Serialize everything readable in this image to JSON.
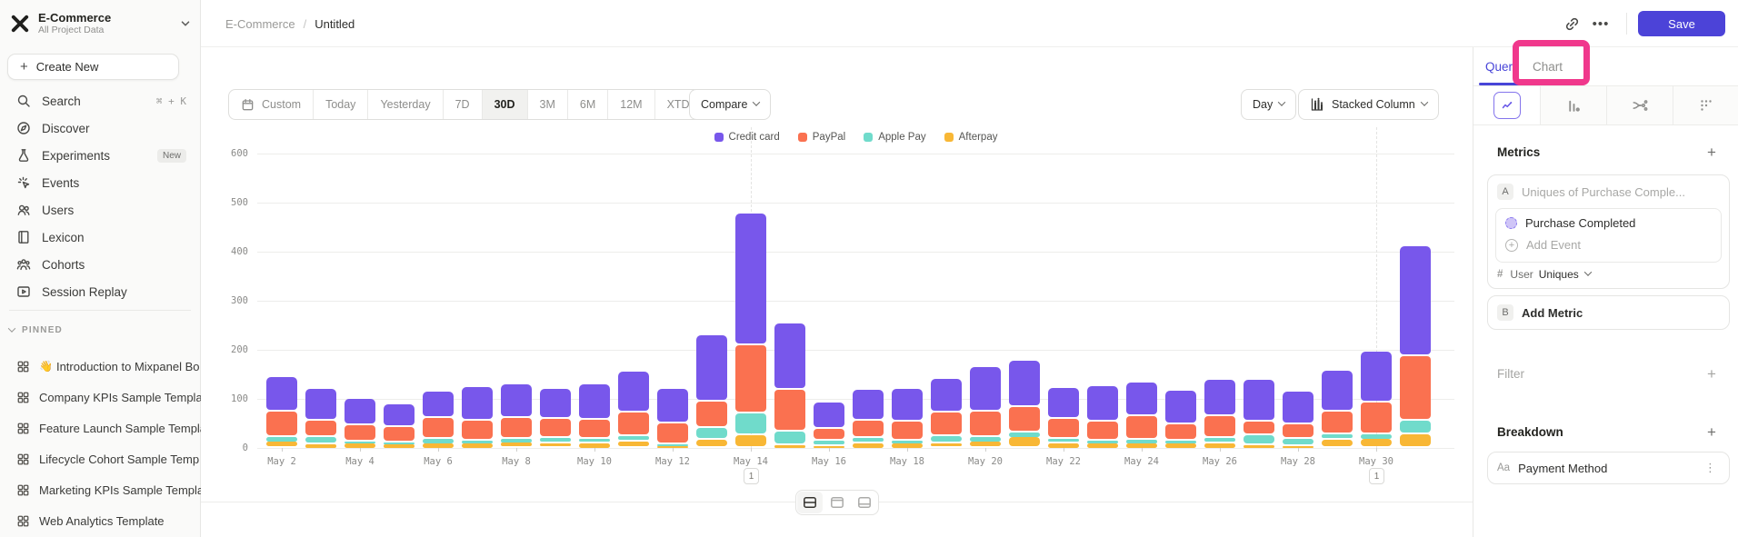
{
  "colors": {
    "accent": "#4c43d8",
    "highlight_box": "#f0388c",
    "active_tab": "#4845d8"
  },
  "sidebar": {
    "project_name": "E-Commerce",
    "project_subtitle": "All Project Data",
    "create_new_label": "Create New",
    "nav": [
      {
        "label": "Search",
        "icon": "search-icon",
        "shortcut": "⌘ + K"
      },
      {
        "label": "Discover",
        "icon": "compass-icon"
      },
      {
        "label": "Experiments",
        "icon": "flask-icon",
        "badge": "New"
      },
      {
        "label": "Events",
        "icon": "events-icon"
      },
      {
        "label": "Users",
        "icon": "users-icon"
      },
      {
        "label": "Lexicon",
        "icon": "book-icon"
      },
      {
        "label": "Cohorts",
        "icon": "cohorts-icon"
      },
      {
        "label": "Session Replay",
        "icon": "replay-icon"
      }
    ],
    "pinned_label": "PINNED",
    "pinned": [
      {
        "emoji": "👋",
        "label": "Introduction to Mixpanel Bo"
      },
      {
        "label": "Company KPIs Sample Templat"
      },
      {
        "label": "Feature Launch Sample Templa"
      },
      {
        "label": "Lifecycle Cohort Sample Temp"
      },
      {
        "label": "Marketing KPIs Sample Templat"
      },
      {
        "label": "Web Analytics Template"
      }
    ]
  },
  "header": {
    "breadcrumb_root": "E-Commerce",
    "breadcrumb_current": "Untitled",
    "save_label": "Save"
  },
  "toolbar": {
    "date_ranges": [
      {
        "label": "Custom",
        "icon": "calendar-icon"
      },
      {
        "label": "Today"
      },
      {
        "label": "Yesterday"
      },
      {
        "label": "7D"
      },
      {
        "label": "30D",
        "active": true
      },
      {
        "label": "3M"
      },
      {
        "label": "6M"
      },
      {
        "label": "12M"
      },
      {
        "label": "XTD",
        "chevron": true
      }
    ],
    "compare_label": "Compare",
    "granularity_label": "Day",
    "chart_type_label": "Stacked Column"
  },
  "right_panel": {
    "tabs": [
      {
        "label": "Query",
        "active": true
      },
      {
        "label": "Chart",
        "active": false
      }
    ],
    "metrics_label": "Metrics",
    "metric_a": {
      "badge": "A",
      "placeholder": "Uniques of Purchase Comple...",
      "event_name": "Purchase Completed",
      "add_event_label": "Add Event",
      "measure_prefix": "User",
      "measure_value": "Uniques"
    },
    "metric_b": {
      "badge": "B",
      "label": "Add Metric"
    },
    "filter_label": "Filter",
    "breakdown_label": "Breakdown",
    "breakdown_item": {
      "prefix": "Aa",
      "label": "Payment Method"
    }
  },
  "chart_data": {
    "type": "bar",
    "stacked": true,
    "title": "",
    "xlabel": "",
    "ylabel": "",
    "ylim": [
      0,
      600
    ],
    "yticks": [
      0,
      100,
      200,
      300,
      400,
      500,
      600
    ],
    "grid": true,
    "legend_position": "top",
    "x_label_every": 2,
    "categories": [
      "May 2",
      "May 3",
      "May 4",
      "May 5",
      "May 6",
      "May 7",
      "May 8",
      "May 9",
      "May 10",
      "May 11",
      "May 12",
      "May 13",
      "May 14",
      "May 15",
      "May 16",
      "May 17",
      "May 18",
      "May 19",
      "May 20",
      "May 21",
      "May 22",
      "May 23",
      "May 24",
      "May 25",
      "May 26",
      "May 27",
      "May 28",
      "May 29",
      "May 30",
      "May 31"
    ],
    "series": [
      {
        "name": "Credit card",
        "color": "#7857eb",
        "values": [
          70,
          65,
          54,
          46,
          54,
          70,
          68,
          61,
          71,
          83,
          71,
          135,
          269,
          136,
          54,
          63,
          67,
          67,
          91,
          95,
          63,
          72,
          68,
          69,
          75,
          85,
          67,
          83,
          103,
          224
        ]
      },
      {
        "name": "PayPal",
        "color": "#fa7150",
        "values": [
          52,
          34,
          33,
          31,
          43,
          40,
          43,
          39,
          39,
          49,
          43,
          54,
          139,
          85,
          24,
          34,
          38,
          49,
          52,
          52,
          40,
          39,
          48,
          33,
          43,
          28,
          29,
          46,
          65,
          131
        ]
      },
      {
        "name": "Apple Pay",
        "color": "#70dbcb",
        "values": [
          9,
          15,
          4,
          5,
          9,
          6,
          6,
          10,
          10,
          11,
          3,
          23,
          44,
          27,
          11,
          12,
          6,
          14,
          9,
          9,
          10,
          6,
          8,
          6,
          12,
          20,
          15,
          11,
          9,
          28
        ]
      },
      {
        "name": "Afterpay",
        "color": "#f8b735",
        "values": [
          13,
          7,
          9,
          7,
          9,
          9,
          12,
          10,
          9,
          13,
          4,
          17,
          26,
          6,
          4,
          9,
          9,
          10,
          13,
          22,
          9,
          9,
          9,
          9,
          9,
          6,
          4,
          17,
          19,
          28
        ]
      }
    ],
    "annotations": [
      {
        "category": "May 14",
        "label": "1"
      },
      {
        "category": "May 30",
        "label": "1"
      }
    ]
  }
}
